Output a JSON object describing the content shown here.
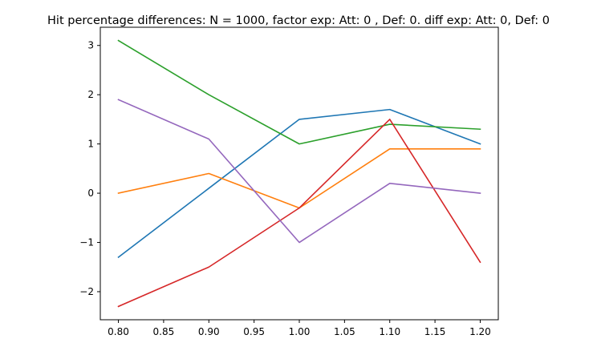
{
  "chart_data": {
    "type": "line",
    "title": "Hit percentage differences: N = 1000, factor exp: Att: 0 , Def: 0. diff exp: Att: 0, Def: 0",
    "xlabel": "",
    "ylabel": "",
    "x": [
      0.8,
      0.9,
      1.0,
      1.1,
      1.2
    ],
    "xlim": [
      0.78,
      1.22
    ],
    "ylim": [
      -2.57,
      3.37
    ],
    "xticks": [
      0.8,
      0.85,
      0.9,
      0.95,
      1.0,
      1.05,
      1.1,
      1.15,
      1.2
    ],
    "xtick_labels": [
      "0.80",
      "0.85",
      "0.90",
      "0.95",
      "1.00",
      "1.05",
      "1.10",
      "1.15",
      "1.20"
    ],
    "yticks": [
      -2,
      -1,
      0,
      1,
      2,
      3
    ],
    "ytick_labels": [
      "−2",
      "−1",
      "0",
      "1",
      "2",
      "3"
    ],
    "grid": false,
    "series": [
      {
        "color": "#1f77b4",
        "values": [
          -1.3,
          0.1,
          1.5,
          1.7,
          1.0
        ]
      },
      {
        "color": "#ff7f0e",
        "values": [
          0.0,
          0.4,
          -0.3,
          0.9,
          0.9
        ]
      },
      {
        "color": "#2ca02c",
        "values": [
          3.1,
          2.0,
          1.0,
          1.4,
          1.3
        ]
      },
      {
        "color": "#d62728",
        "values": [
          -2.3,
          -1.5,
          -0.3,
          1.5,
          -1.4
        ]
      },
      {
        "color": "#9467bd",
        "values": [
          1.9,
          1.1,
          -1.0,
          0.2,
          0.0
        ]
      }
    ]
  }
}
